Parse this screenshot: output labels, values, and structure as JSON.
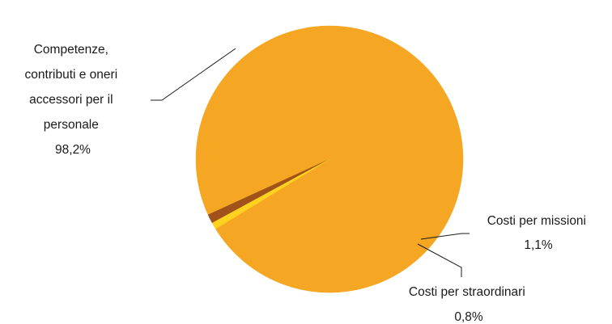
{
  "chart_data": {
    "type": "pie",
    "slices": [
      {
        "label_lines": [
          "Competenze,",
          "contributi e oneri",
          "accessori per il",
          "personale"
        ],
        "value": 98.2,
        "display": "98,2%",
        "color": "#F5A623"
      },
      {
        "label_lines": [
          "Costi per missioni"
        ],
        "value": 1.1,
        "display": "1,1%",
        "color": "#A0521A"
      },
      {
        "label_lines": [
          "Costi per straordinari"
        ],
        "value": 0.8,
        "display": "0,8%",
        "color": "#FFD21F"
      }
    ],
    "start_angle_deg": 148.5,
    "direction": "counterclockwise",
    "legend": "none",
    "title": ""
  }
}
